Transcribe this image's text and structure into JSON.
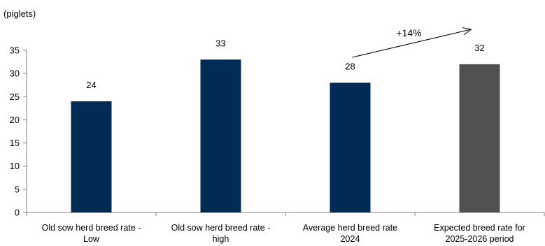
{
  "chart_data": {
    "type": "bar",
    "unit_label": "(piglets)",
    "categories": [
      [
        "Old sow herd breed rate -",
        "Low"
      ],
      [
        "Old sow herd breed rate -",
        "high"
      ],
      [
        "Average herd breed rate",
        "2024"
      ],
      [
        "Expected breed rate for",
        "2025-2026 period"
      ]
    ],
    "values": [
      24,
      33,
      28,
      32
    ],
    "data_labels": [
      "24",
      "33",
      "28",
      "32"
    ],
    "bar_colors": [
      "#002b55",
      "#002b55",
      "#002b55",
      "#505050"
    ],
    "ylim": [
      0,
      35
    ],
    "yticks": [
      "0",
      "5",
      "10",
      "15",
      "20",
      "25",
      "30",
      "35"
    ],
    "annotation": {
      "text": "+14%",
      "from_category_index": 2,
      "to_category_index": 3
    },
    "grid": false,
    "legend": "none",
    "axis_color": "#808080"
  }
}
